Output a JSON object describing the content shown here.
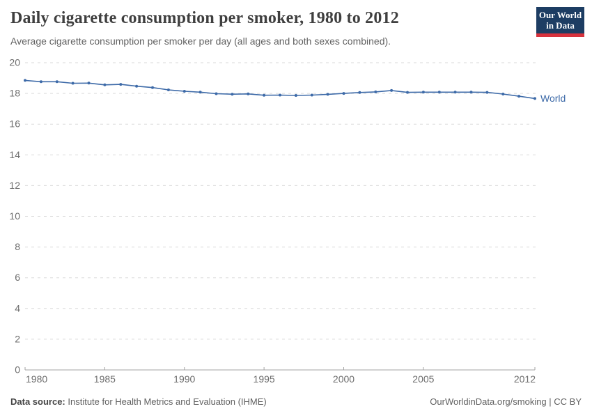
{
  "branding": {
    "logo_line1": "Our World",
    "logo_line2": "in Data",
    "logo_bg_color": "#1d3d63",
    "logo_accent_color": "#d7323d"
  },
  "chart_data": {
    "type": "line",
    "title": "Daily cigarette consumption per smoker, 1980 to 2012",
    "subtitle": "Average cigarette consumption per smoker per day (all ages and both sexes combined).",
    "x": [
      1980,
      1981,
      1982,
      1983,
      1984,
      1985,
      1986,
      1987,
      1988,
      1989,
      1990,
      1991,
      1992,
      1993,
      1994,
      1995,
      1996,
      1997,
      1998,
      1999,
      2000,
      2001,
      2002,
      2003,
      2004,
      2005,
      2006,
      2007,
      2008,
      2009,
      2010,
      2011,
      2012
    ],
    "series": [
      {
        "name": "World",
        "color": "#3d6aa8",
        "values": [
          18.85,
          18.76,
          18.76,
          18.66,
          18.67,
          18.56,
          18.59,
          18.47,
          18.38,
          18.23,
          18.14,
          18.08,
          17.98,
          17.95,
          17.97,
          17.88,
          17.89,
          17.87,
          17.89,
          17.94,
          18.0,
          18.06,
          18.1,
          18.19,
          18.07,
          18.08,
          18.08,
          18.08,
          18.08,
          18.07,
          17.96,
          17.82,
          17.67
        ]
      }
    ],
    "xlabel": "",
    "ylabel": "",
    "ylim": [
      0,
      20
    ],
    "yticks": [
      0,
      2,
      4,
      6,
      8,
      10,
      12,
      14,
      16,
      18,
      20
    ],
    "xtick_values": [
      1980,
      1985,
      1990,
      1995,
      2000,
      2005,
      2012
    ],
    "xtick_labels": [
      "1980",
      "1985",
      "1990",
      "1995",
      "2000",
      "2005",
      "2012"
    ],
    "grid": "horizontal-dashed",
    "gridline_color": "#dadada",
    "axis_color": "#a3a3a3",
    "tick_label_color": "#6d6d6d",
    "legend": "inline-end-label"
  },
  "footer": {
    "data_source_label": "Data source:",
    "data_source_value": " Institute for Health Metrics and Evaluation (IHME)",
    "attribution": "OurWorldinData.org/smoking | CC BY"
  }
}
